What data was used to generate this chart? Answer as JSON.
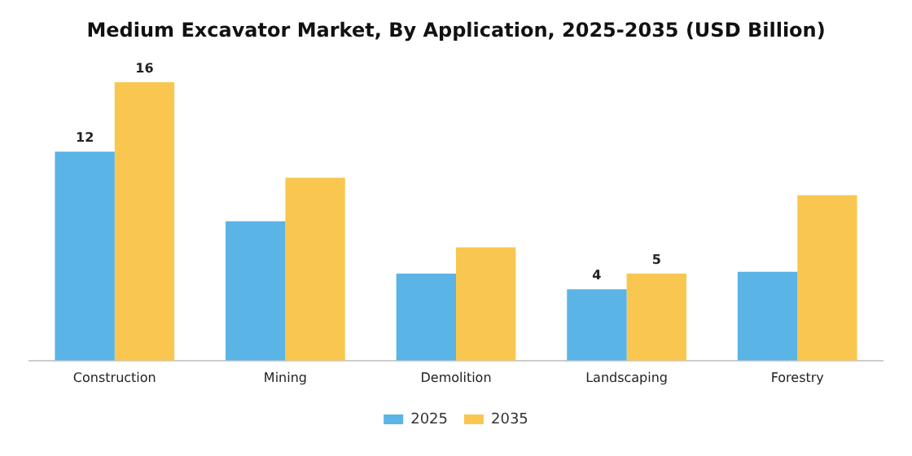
{
  "chart_data": {
    "type": "bar",
    "title": "Medium Excavator Market, By Application, 2025-2035 (USD Billion)",
    "categories": [
      "Construction",
      "Mining",
      "Demolition",
      "Landscaping",
      "Forestry"
    ],
    "series": [
      {
        "name": "2025",
        "color": "#5ab4e6",
        "values": [
          12,
          8,
          5,
          4.1,
          5.1
        ],
        "value_labels": [
          "12",
          null,
          null,
          "4",
          null
        ]
      },
      {
        "name": "2035",
        "color": "#f9c74f",
        "values": [
          16,
          10.5,
          6.5,
          5,
          9.5
        ],
        "value_labels": [
          "16",
          null,
          null,
          "5",
          null
        ]
      }
    ],
    "legend": "bottom",
    "grid": false
  }
}
